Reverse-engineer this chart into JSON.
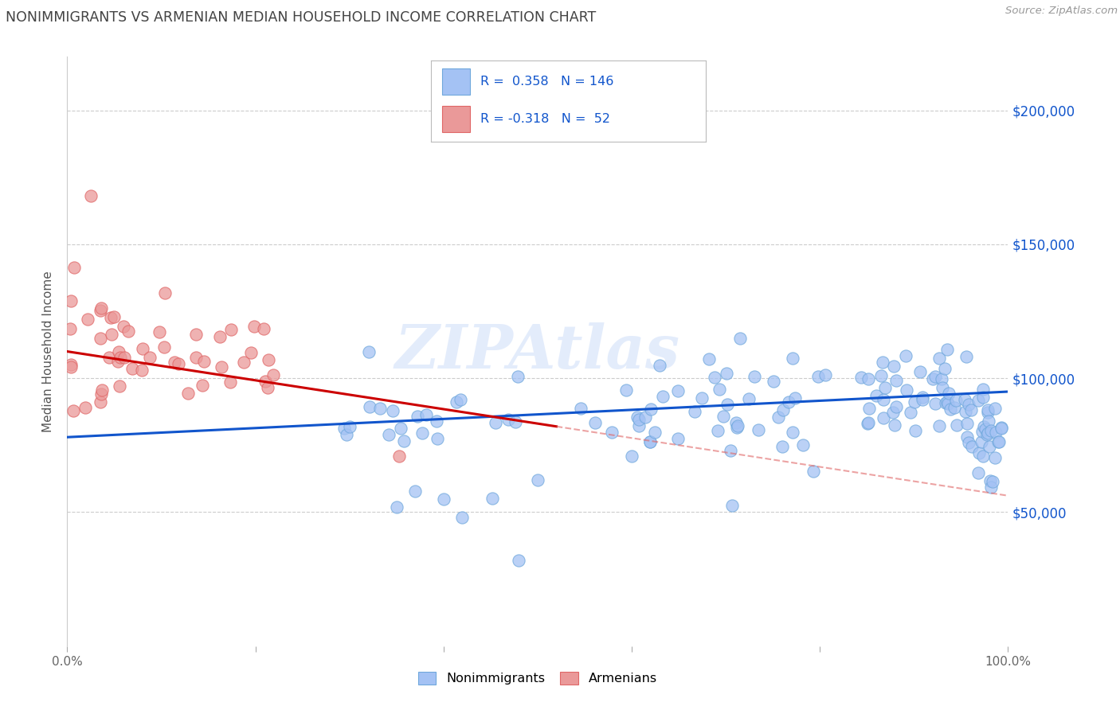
{
  "title": "NONIMMIGRANTS VS ARMENIAN MEDIAN HOUSEHOLD INCOME CORRELATION CHART",
  "source": "Source: ZipAtlas.com",
  "ylabel": "Median Household Income",
  "ytick_labels": [
    "$50,000",
    "$100,000",
    "$150,000",
    "$200,000"
  ],
  "ytick_values": [
    50000,
    100000,
    150000,
    200000
  ],
  "ylim": [
    0,
    220000
  ],
  "xlim": [
    0.0,
    1.0
  ],
  "r_nonimm": 0.358,
  "n_nonimm": 146,
  "r_armenian": -0.318,
  "n_armenian": 52,
  "blue_scatter_color": "#a4c2f4",
  "blue_scatter_edge": "#6fa8dc",
  "pink_scatter_color": "#ea9999",
  "pink_scatter_edge": "#e06666",
  "trend_blue": "#1155cc",
  "trend_pink_solid": "#cc0000",
  "trend_pink_dashed": "#e06666",
  "watermark": "ZIPAtlas",
  "legend_label_nonimm": "Nonimmigrants",
  "legend_label_armenian": "Armenians",
  "background_color": "#ffffff",
  "grid_color": "#cccccc",
  "title_color": "#434343",
  "source_color": "#999999",
  "axis_label_color": "#555555",
  "tick_label_color_right": "#1155cc",
  "legend_blue_fill": "#a4c2f4",
  "legend_pink_fill": "#ea9999"
}
